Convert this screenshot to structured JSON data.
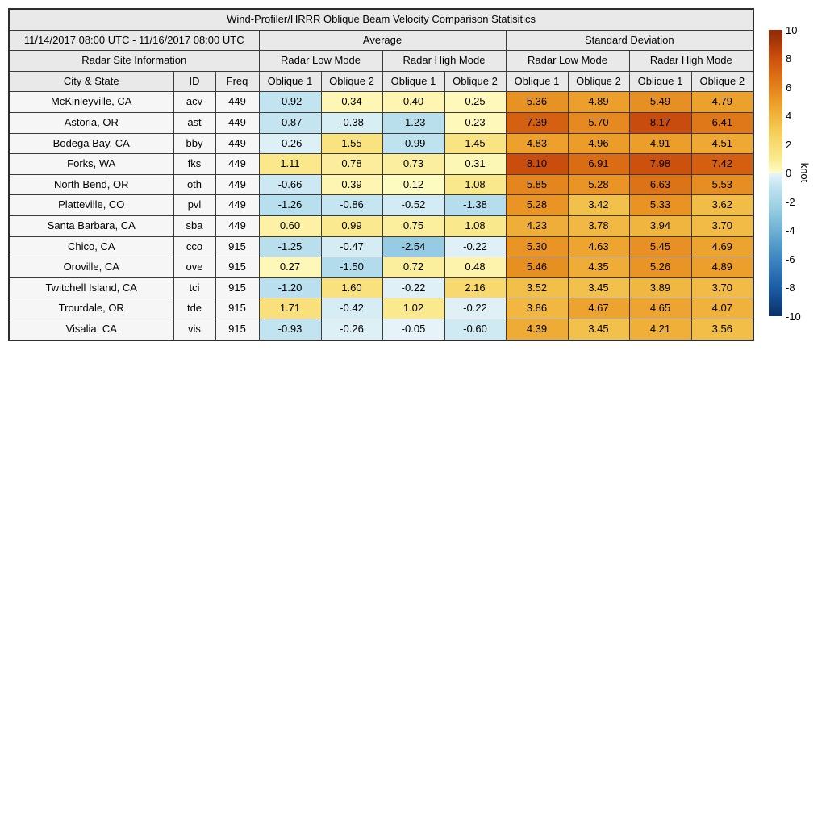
{
  "title": "Wind-Profiler/HRRR Oblique Beam Velocity Comparison Statisitics",
  "header": {
    "date_range": "11/14/2017 08:00 UTC - 11/16/2017 08:00 UTC",
    "group_average": "Average",
    "group_std": "Standard Deviation",
    "site_info": "Radar Site Information",
    "modes": [
      "Radar Low Mode",
      "Radar High Mode",
      "Radar Low Mode",
      "Radar High Mode"
    ],
    "columns": [
      "City & State",
      "ID",
      "Freq",
      "Oblique 1",
      "Oblique 2",
      "Oblique 1",
      "Oblique 2",
      "Oblique 1",
      "Oblique 2",
      "Oblique 1",
      "Oblique 2"
    ]
  },
  "colorbar": {
    "unit": "knot",
    "ticks": [
      10,
      8,
      6,
      4,
      2,
      0,
      -2,
      -4,
      -6,
      -8,
      -10
    ],
    "vmin": -10,
    "vmax": 10
  },
  "colormap": {
    "positive_stops": [
      [
        0,
        "#fffdc8"
      ],
      [
        1,
        "#fae98e"
      ],
      [
        2,
        "#f8dc74"
      ],
      [
        3,
        "#f4cb55"
      ],
      [
        4,
        "#f0b43e"
      ],
      [
        5,
        "#ec9c28"
      ],
      [
        6,
        "#e2811c"
      ],
      [
        7,
        "#d96a13"
      ],
      [
        8,
        "#cc500e"
      ],
      [
        9,
        "#ad3a09"
      ],
      [
        10,
        "#8e2a07"
      ]
    ],
    "negative_stops": [
      [
        -10,
        "#0a3168"
      ],
      [
        -9,
        "#134687"
      ],
      [
        -8,
        "#1d5da6"
      ],
      [
        -7,
        "#2d71b2"
      ],
      [
        -6,
        "#3d86c0"
      ],
      [
        -5,
        "#549bc9"
      ],
      [
        -4,
        "#6fb0d4"
      ],
      [
        -3,
        "#8ac4de"
      ],
      [
        -2,
        "#a5d5e8"
      ],
      [
        -1,
        "#bfe2ef"
      ],
      [
        0,
        "#e8f5f9"
      ]
    ]
  },
  "chart_data": {
    "type": "heatmap",
    "title": "Wind-Profiler/HRRR Oblique Beam Velocity Comparison Statisitics",
    "date_range": "11/14/2017 08:00 UTC - 11/16/2017 08:00 UTC",
    "value_columns": [
      "Average / Radar Low Mode / Oblique 1",
      "Average / Radar Low Mode / Oblique 2",
      "Average / Radar High Mode / Oblique 1",
      "Average / Radar High Mode / Oblique 2",
      "Standard Deviation / Radar Low Mode / Oblique 1",
      "Standard Deviation / Radar Low Mode / Oblique 2",
      "Standard Deviation / Radar High Mode / Oblique 1",
      "Standard Deviation / Radar High Mode / Oblique 2"
    ],
    "unit": "knot",
    "color_range": [
      -10,
      10
    ],
    "rows": [
      {
        "city": "McKinleyville, CA",
        "id": "acv",
        "freq": "449",
        "values": [
          -0.92,
          0.34,
          0.4,
          0.25,
          5.36,
          4.89,
          5.49,
          4.79
        ]
      },
      {
        "city": "Astoria, OR",
        "id": "ast",
        "freq": "449",
        "values": [
          -0.87,
          -0.38,
          -1.23,
          0.23,
          7.39,
          5.7,
          8.17,
          6.41
        ]
      },
      {
        "city": "Bodega Bay, CA",
        "id": "bby",
        "freq": "449",
        "values": [
          -0.26,
          1.55,
          -0.99,
          1.45,
          4.83,
          4.96,
          4.91,
          4.51
        ]
      },
      {
        "city": "Forks, WA",
        "id": "fks",
        "freq": "449",
        "values": [
          1.11,
          0.78,
          0.73,
          0.31,
          8.1,
          6.91,
          7.98,
          7.42
        ]
      },
      {
        "city": "North Bend, OR",
        "id": "oth",
        "freq": "449",
        "values": [
          -0.66,
          0.39,
          0.12,
          1.08,
          5.85,
          5.28,
          6.63,
          5.53
        ]
      },
      {
        "city": "Platteville, CO",
        "id": "pvl",
        "freq": "449",
        "values": [
          -1.26,
          -0.86,
          -0.52,
          -1.38,
          5.28,
          3.42,
          5.33,
          3.62
        ]
      },
      {
        "city": "Santa Barbara, CA",
        "id": "sba",
        "freq": "449",
        "values": [
          0.6,
          0.99,
          0.75,
          1.08,
          4.23,
          3.78,
          3.94,
          3.7
        ]
      },
      {
        "city": "Chico, CA",
        "id": "cco",
        "freq": "915",
        "values": [
          -1.25,
          -0.47,
          -2.54,
          -0.22,
          5.3,
          4.63,
          5.45,
          4.69
        ]
      },
      {
        "city": "Oroville, CA",
        "id": "ove",
        "freq": "915",
        "values": [
          0.27,
          -1.5,
          0.72,
          0.48,
          5.46,
          4.35,
          5.26,
          4.89
        ]
      },
      {
        "city": "Twitchell Island, CA",
        "id": "tci",
        "freq": "915",
        "values": [
          -1.2,
          1.6,
          -0.22,
          2.16,
          3.52,
          3.45,
          3.89,
          3.7
        ]
      },
      {
        "city": "Troutdale, OR",
        "id": "tde",
        "freq": "915",
        "values": [
          1.71,
          -0.42,
          1.02,
          -0.22,
          3.86,
          4.67,
          4.65,
          4.07
        ]
      },
      {
        "city": "Visalia, CA",
        "id": "vis",
        "freq": "915",
        "values": [
          -0.93,
          -0.26,
          -0.05,
          -0.6,
          4.39,
          3.45,
          4.21,
          3.56
        ]
      }
    ]
  }
}
